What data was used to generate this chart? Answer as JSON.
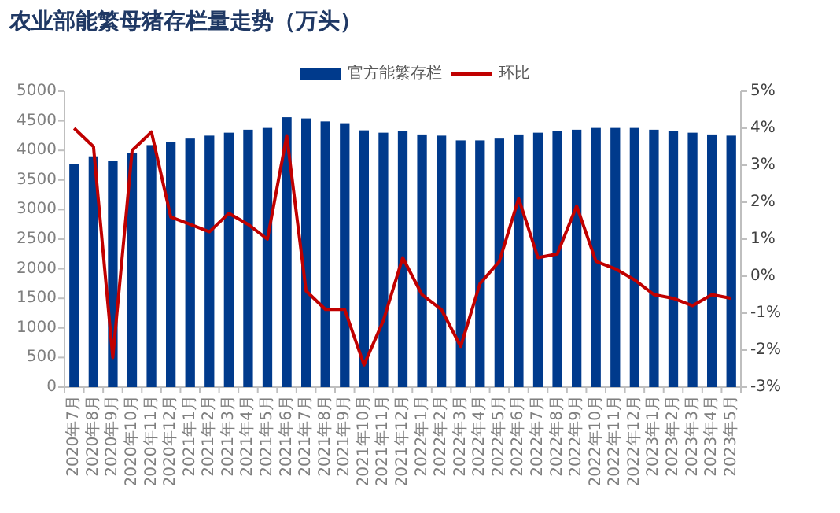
{
  "chart_data": {
    "type": "bar",
    "title": "农业部能繁母猪存栏量走势（万头）",
    "categories": [
      "2020年7月",
      "2020年8月",
      "2020年9月",
      "2020年10月",
      "2020年11月",
      "2020年12月",
      "2021年1月",
      "2021年2月",
      "2021年3月",
      "2021年4月",
      "2021年5月",
      "2021年6月",
      "2021年7月",
      "2021年8月",
      "2021年9月",
      "2021年10月",
      "2021年11月",
      "2021年12月",
      "2022年1月",
      "2022年2月",
      "2022年3月",
      "2022年4月",
      "2022年5月",
      "2022年6月",
      "2022年7月",
      "2022年8月",
      "2022年9月",
      "2022年10月",
      "2022年11月",
      "2022年12月",
      "2023年1月",
      "2023年2月",
      "2023年3月",
      "2023年4月",
      "2023年5月"
    ],
    "series": [
      {
        "name": "官方能繁存栏",
        "color": "#003a8c",
        "values": [
          3770,
          3900,
          3820,
          3960,
          4090,
          4140,
          4200,
          4250,
          4300,
          4350,
          4380,
          4560,
          4540,
          4490,
          4460,
          4340,
          4300,
          4330,
          4270,
          4250,
          4170,
          4170,
          4200,
          4270,
          4300,
          4330,
          4350,
          4380,
          4380,
          4380,
          4350,
          4330,
          4300,
          4270,
          4250
        ]
      },
      {
        "name": "环比",
        "type": "line",
        "axis": "y2",
        "color": "#c00000",
        "values": [
          4.0,
          3.5,
          -2.2,
          3.4,
          3.9,
          1.6,
          1.4,
          1.2,
          1.7,
          1.4,
          1.0,
          3.8,
          -0.4,
          -0.9,
          -0.9,
          -2.4,
          -1.2,
          0.5,
          -0.5,
          -0.9,
          -1.9,
          -0.2,
          0.4,
          2.1,
          0.5,
          0.6,
          1.9,
          0.4,
          0.2,
          -0.1,
          -0.5,
          -0.6,
          -0.8,
          -0.5,
          -0.6
        ]
      }
    ],
    "ylim": [
      0,
      5000
    ],
    "yticks": [
      0,
      500,
      1000,
      1500,
      2000,
      2500,
      3000,
      3500,
      4000,
      4500,
      5000
    ],
    "y2lim": [
      -3,
      5
    ],
    "y2ticks": [
      {
        "value": -3,
        "label": "-3%"
      },
      {
        "value": -2,
        "label": "-2%"
      },
      {
        "value": -1,
        "label": "-1%"
      },
      {
        "value": 0,
        "label": "0%"
      },
      {
        "value": 1,
        "label": "1%"
      },
      {
        "value": 2,
        "label": "2%"
      },
      {
        "value": 3,
        "label": "3%"
      },
      {
        "value": 4,
        "label": "4%"
      },
      {
        "value": 5,
        "label": "5%"
      }
    ],
    "legend": "top"
  }
}
